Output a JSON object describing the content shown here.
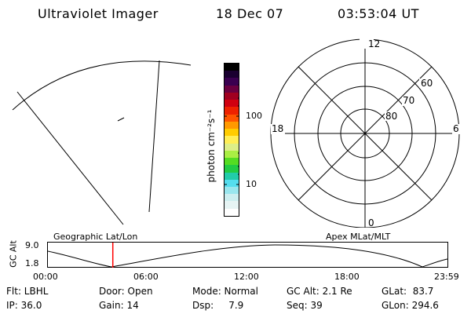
{
  "header": {
    "instrument": "Ultraviolet Imager",
    "date": "18 Dec 07",
    "time": "03:53:04 UT"
  },
  "colorbar": {
    "unit_label": "photon cm⁻²s⁻¹",
    "ticks": [
      "100",
      "10"
    ],
    "colors": [
      "#000000",
      "#1a0030",
      "#3a0050",
      "#6a0040",
      "#a00020",
      "#d00010",
      "#ee2200",
      "#ff5500",
      "#ff9900",
      "#ffcc00",
      "#ffee55",
      "#ddee88",
      "#aaee44",
      "#55dd22",
      "#22cc44",
      "#22ccaa",
      "#55ddee",
      "#99e6ee",
      "#cceef0",
      "#e6f4f4",
      "#ffffff"
    ]
  },
  "polar_plot": {
    "hours": [
      "12",
      "18",
      "6",
      "0"
    ],
    "latitudes": [
      "60",
      "70",
      "80"
    ]
  },
  "altitude_panel": {
    "left_title": "Geographic Lat/Lon",
    "right_title": "Apex MLat/MLT",
    "y_axis_label": "GC Alt",
    "y_ticks": [
      "9.0",
      "1.8"
    ],
    "x_ticks": [
      "00:00",
      "06:00",
      "12:00",
      "18:00",
      "23:59"
    ],
    "current_time_fraction": 0.1625,
    "marker_color": "#ff0000"
  },
  "info": {
    "filter": "Flt: LBHL",
    "ip": "IP: 36.0",
    "door": "Door: Open",
    "gain": "Gain: 14",
    "mode": "Mode: Normal",
    "dsp": "Dsp:     7.9",
    "gc_alt": "GC Alt: 2.1 Re",
    "seq": "Seq: 39",
    "glat": "GLat:  83.7",
    "glon": "GLon: 294.6"
  }
}
